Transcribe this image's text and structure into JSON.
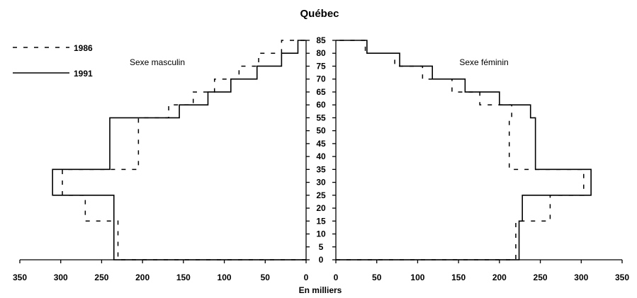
{
  "chart_data": {
    "type": "population-pyramid",
    "title": "Québec",
    "xlabel": "En milliers",
    "x_ticks": [
      "350",
      "300",
      "250",
      "200",
      "150",
      "100",
      "50",
      "0"
    ],
    "xlim": [
      0,
      350
    ],
    "age_ticks": [
      "0",
      "5",
      "10",
      "15",
      "20",
      "25",
      "30",
      "35",
      "40",
      "45",
      "50",
      "55",
      "60",
      "65",
      "70",
      "75",
      "80",
      "85"
    ],
    "age_groups_lower": [
      0,
      15,
      20,
      25,
      35,
      55,
      60,
      65,
      70,
      75,
      80
    ],
    "age_groups_upper": [
      15,
      20,
      25,
      35,
      55,
      60,
      65,
      70,
      75,
      80,
      85
    ],
    "panels": {
      "male": {
        "label": "Sexe masculin"
      },
      "female": {
        "label": "Sexe féminin"
      }
    },
    "series": [
      {
        "name": "1986",
        "style": "dashed",
        "male": [
          230,
          270,
          270,
          298,
          205,
          168,
          138,
          112,
          82,
          58,
          30
        ],
        "female": [
          220,
          262,
          262,
          303,
          212,
          215,
          176,
          142,
          106,
          72,
          36
        ]
      },
      {
        "name": "1991",
        "style": "solid",
        "male": [
          235,
          235,
          235,
          310,
          240,
          155,
          120,
          92,
          60,
          30,
          10
        ],
        "female": [
          224,
          228,
          228,
          312,
          244,
          238,
          200,
          158,
          118,
          78,
          38
        ]
      }
    ]
  }
}
